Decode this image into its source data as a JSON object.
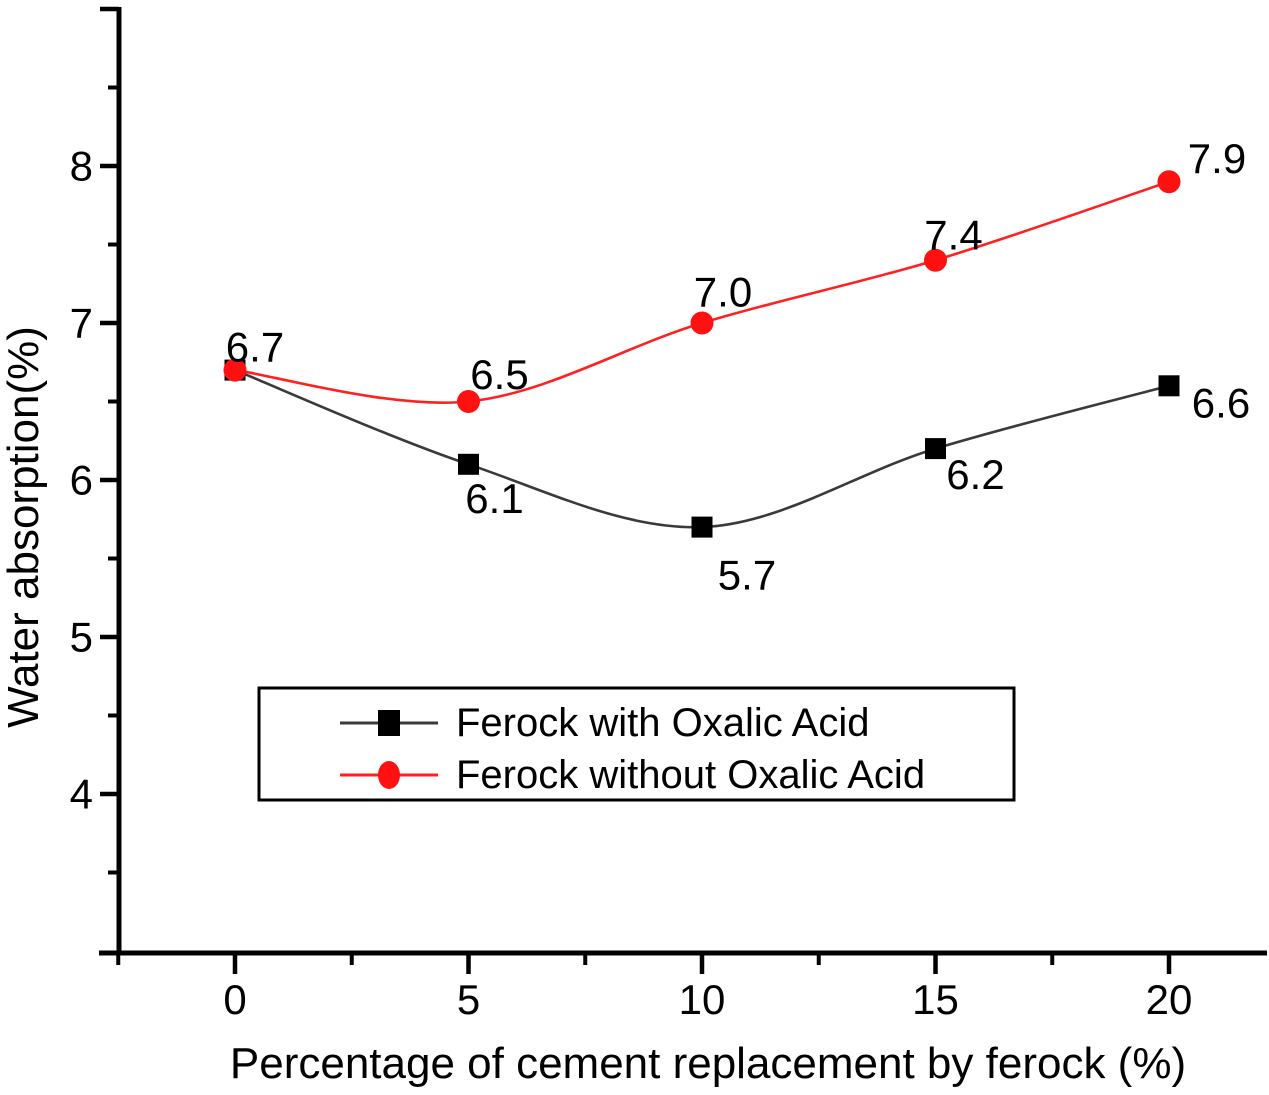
{
  "chart_data": {
    "type": "line",
    "title": "",
    "xlabel": "Percentage of cement replacement by ferock (%)",
    "ylabel": "Water absorption(%)",
    "x": [
      0,
      5,
      10,
      15,
      20
    ],
    "x_tick_labels": [
      "0",
      "5",
      "10",
      "15",
      "20"
    ],
    "y_tick_labels": [
      "8",
      "7",
      "6",
      "5",
      "4"
    ],
    "y_major_ticks": [
      9,
      8,
      7,
      6,
      5,
      4
    ],
    "y_minor_ticks": [
      8.5,
      7.5,
      6.5,
      5.5,
      4.5,
      3.5
    ],
    "x_major_ticks": [
      0,
      5,
      10,
      15,
      20
    ],
    "x_minor_ticks": [
      -2.5,
      2.5,
      7.5,
      12.5,
      17.5
    ],
    "xlim": [
      -2.9,
      22.1
    ],
    "ylim": [
      3,
      9
    ],
    "grid": "off",
    "legend_position": "lower-center-inside",
    "series": [
      {
        "name": "Ferock with Oxalic Acid",
        "marker": "square",
        "line_color": "#3a3a3a",
        "marker_color": "#000000",
        "values": [
          6.7,
          6.1,
          5.7,
          6.2,
          6.6
        ],
        "point_labels": [
          "6.7",
          "6.1",
          "5.7",
          "6.2",
          "6.6"
        ],
        "label_offsets": [
          [
            20,
            -23
          ],
          [
            26,
            34
          ],
          [
            45,
            48
          ],
          [
            40,
            26
          ],
          [
            52,
            17
          ]
        ]
      },
      {
        "name": "Ferock without Oxalic Acid",
        "marker": "circle",
        "line_color": "#ff2020",
        "marker_color": "#ff1111",
        "values": [
          6.7,
          6.5,
          7.0,
          7.4,
          7.9
        ],
        "point_labels": [
          "",
          "6.5",
          "7.0",
          "7.4",
          "7.9"
        ],
        "label_offsets": [
          [
            0,
            0
          ],
          [
            31,
            -27
          ],
          [
            21,
            -31
          ],
          [
            18,
            -25
          ],
          [
            48,
            -23
          ]
        ]
      }
    ],
    "colors": {
      "axis": "#000000",
      "text": "#000000",
      "legend_border": "#000000",
      "background": "#ffffff"
    }
  }
}
